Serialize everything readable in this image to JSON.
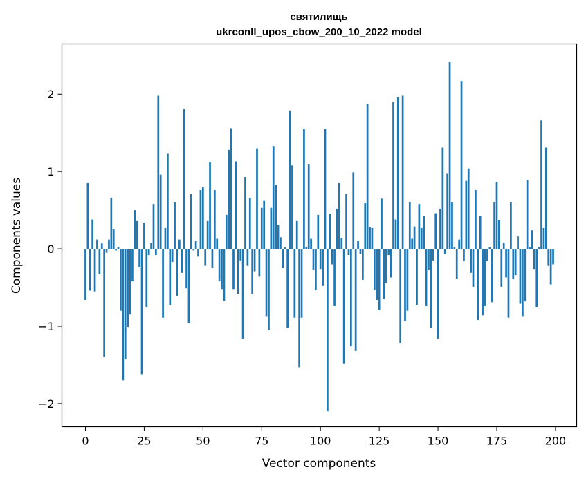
{
  "chart_data": {
    "type": "bar",
    "title_lines": [
      "святилищь",
      "ukrconll_upos_cbow_200_10_2022 model"
    ],
    "xlabel": "Vector components",
    "ylabel": "Components values",
    "xlim": [
      -10,
      209
    ],
    "ylim": [
      -2.3,
      2.65
    ],
    "xticks": [
      0,
      25,
      50,
      75,
      100,
      125,
      150,
      175,
      200
    ],
    "yticks": [
      -2,
      -1,
      0,
      1,
      2
    ],
    "ytick_labels": [
      "−2",
      "−1",
      "0",
      "1",
      "2"
    ],
    "bar_color": "#1f77b4",
    "grid": false,
    "x": [
      0,
      1,
      2,
      3,
      4,
      5,
      6,
      7,
      8,
      9,
      10,
      11,
      12,
      13,
      14,
      15,
      16,
      17,
      18,
      19,
      20,
      21,
      22,
      23,
      24,
      25,
      26,
      27,
      28,
      29,
      30,
      31,
      32,
      33,
      34,
      35,
      36,
      37,
      38,
      39,
      40,
      41,
      42,
      43,
      44,
      45,
      46,
      47,
      48,
      49,
      50,
      51,
      52,
      53,
      54,
      55,
      56,
      57,
      58,
      59,
      60,
      61,
      62,
      63,
      64,
      65,
      66,
      67,
      68,
      69,
      70,
      71,
      72,
      73,
      74,
      75,
      76,
      77,
      78,
      79,
      80,
      81,
      82,
      83,
      84,
      85,
      86,
      87,
      88,
      89,
      90,
      91,
      92,
      93,
      94,
      95,
      96,
      97,
      98,
      99,
      100,
      101,
      102,
      103,
      104,
      105,
      106,
      107,
      108,
      109,
      110,
      111,
      112,
      113,
      114,
      115,
      116,
      117,
      118,
      119,
      120,
      121,
      122,
      123,
      124,
      125,
      126,
      127,
      128,
      129,
      130,
      131,
      132,
      133,
      134,
      135,
      136,
      137,
      138,
      139,
      140,
      141,
      142,
      143,
      144,
      145,
      146,
      147,
      148,
      149,
      150,
      151,
      152,
      153,
      154,
      155,
      156,
      157,
      158,
      159,
      160,
      161,
      162,
      163,
      164,
      165,
      166,
      167,
      168,
      169,
      170,
      171,
      172,
      173,
      174,
      175,
      176,
      177,
      178,
      179,
      180,
      181,
      182,
      183,
      184,
      185,
      186,
      187,
      188,
      189,
      190,
      191,
      192,
      193,
      194,
      195,
      196,
      197,
      198,
      199
    ],
    "values": [
      -0.66,
      0.85,
      -0.54,
      0.38,
      -0.55,
      0.12,
      -0.33,
      0.07,
      -1.4,
      -0.05,
      0.12,
      0.66,
      0.25,
      -0.02,
      0.02,
      -0.8,
      -1.7,
      -1.43,
      -1.01,
      -0.85,
      -0.42,
      0.5,
      0.36,
      -0.24,
      -1.62,
      0.34,
      -0.75,
      -0.08,
      0.08,
      0.58,
      -0.08,
      1.98,
      0.96,
      -0.89,
      0.27,
      1.23,
      -0.73,
      -0.17,
      0.6,
      -0.61,
      0.12,
      -0.31,
      1.81,
      -0.51,
      -0.96,
      0.71,
      -0.02,
      0.1,
      -0.1,
      0.76,
      0.8,
      -0.22,
      0.36,
      1.12,
      -0.25,
      0.76,
      0.13,
      -0.42,
      -0.52,
      -0.67,
      0.44,
      1.28,
      1.56,
      -0.52,
      1.13,
      -0.58,
      -0.15,
      -1.16,
      0.93,
      -0.22,
      0.66,
      -0.58,
      -0.29,
      1.3,
      -0.36,
      0.53,
      0.62,
      -0.87,
      -1.05,
      0.53,
      1.33,
      0.83,
      0.31,
      0.15,
      -0.25,
      0.02,
      -1.02,
      1.79,
      1.08,
      -0.89,
      0.36,
      -1.53,
      -0.89,
      1.55,
      0.02,
      1.09,
      0.13,
      -0.27,
      -0.53,
      0.44,
      -0.26,
      -0.48,
      1.55,
      -2.1,
      0.45,
      -0.2,
      -0.74,
      0.52,
      0.85,
      0.14,
      -1.48,
      0.71,
      -0.08,
      -1.26,
      0.99,
      -1.32,
      0.1,
      -0.07,
      -0.4,
      0.59,
      1.87,
      0.28,
      0.27,
      -0.53,
      -0.66,
      -0.79,
      0.65,
      -0.65,
      -0.44,
      -0.08,
      -0.37,
      1.9,
      0.38,
      1.96,
      -1.22,
      1.98,
      -0.93,
      -0.8,
      0.6,
      0.13,
      0.29,
      -0.73,
      0.58,
      0.27,
      0.43,
      -0.74,
      -0.27,
      -1.02,
      -0.15,
      0.46,
      -1.16,
      0.52,
      1.31,
      -0.07,
      0.97,
      2.42,
      0.6,
      0.02,
      -0.39,
      0.12,
      2.17,
      -0.16,
      0.88,
      1.04,
      -0.31,
      -0.49,
      0.76,
      -0.92,
      0.43,
      -0.86,
      -0.74,
      -0.16,
      0.02,
      -0.69,
      0.6,
      0.86,
      0.37,
      -0.49,
      0.08,
      -0.37,
      -0.89,
      0.6,
      -0.39,
      -0.34,
      0.16,
      -0.71,
      -0.87,
      -0.68,
      0.89,
      0.02,
      0.24,
      -0.26,
      -0.75,
      0.02,
      1.66,
      0.27,
      1.31,
      -0.22,
      -0.46,
      -0.2
    ]
  }
}
